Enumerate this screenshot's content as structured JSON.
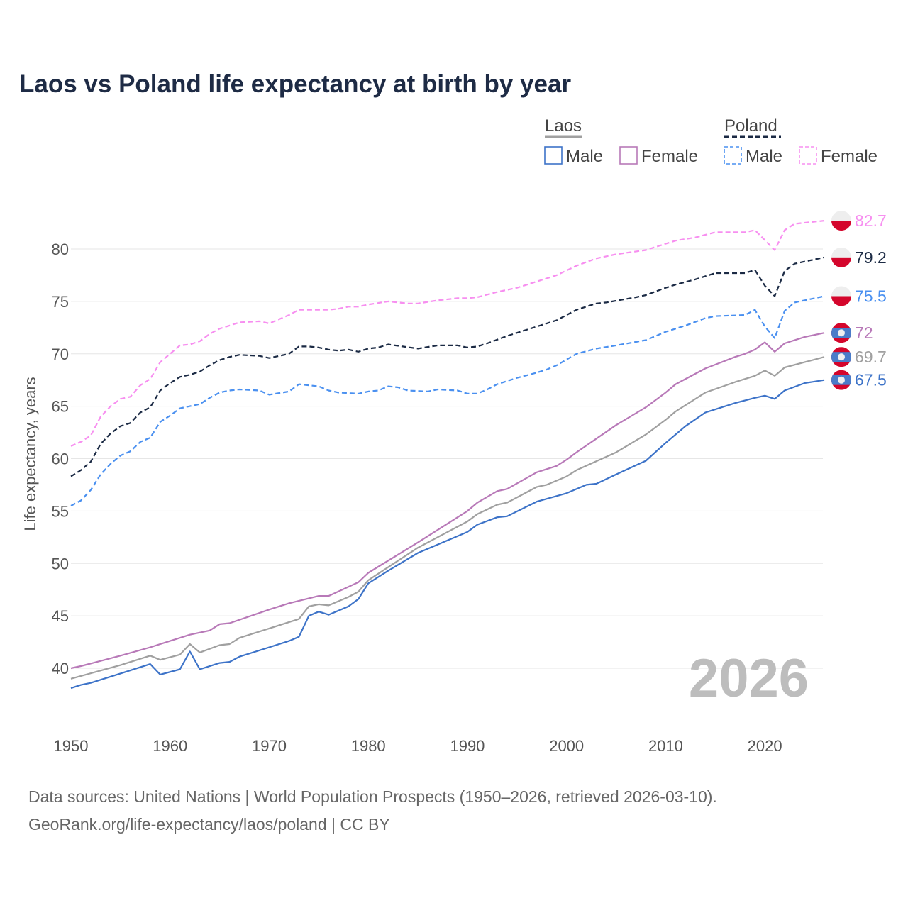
{
  "chart_data": {
    "type": "line",
    "title": "Laos vs Poland life expectancy at birth by year",
    "xlabel": "",
    "ylabel": "Life expectancy, years",
    "xlim": [
      1950,
      2026
    ],
    "ylim": [
      37,
      83
    ],
    "x_ticks": [
      "1950",
      "1960",
      "1970",
      "1980",
      "1990",
      "2000",
      "2010",
      "2020"
    ],
    "y_ticks": [
      "40",
      "45",
      "50",
      "55",
      "60",
      "65",
      "70",
      "75",
      "80"
    ],
    "grid": true,
    "current_year": "2026",
    "legend": {
      "placement": "top-right",
      "groups": [
        {
          "name": "Laos",
          "items": [
            "Male",
            "Female"
          ]
        },
        {
          "name": "Poland",
          "items": [
            "Male",
            "Female"
          ]
        }
      ]
    },
    "series": [
      {
        "name": "Poland Female",
        "country": "Poland",
        "color": "#f78ff0",
        "dashed": true,
        "end_label": "82.7",
        "points": [
          [
            1950,
            61.2
          ],
          [
            1951,
            61.6
          ],
          [
            1952,
            62.2
          ],
          [
            1953,
            64.0
          ],
          [
            1954,
            65.0
          ],
          [
            1955,
            65.7
          ],
          [
            1956,
            65.9
          ],
          [
            1957,
            67.0
          ],
          [
            1958,
            67.6
          ],
          [
            1959,
            69.2
          ],
          [
            1960,
            70.0
          ],
          [
            1961,
            70.8
          ],
          [
            1962,
            70.9
          ],
          [
            1963,
            71.2
          ],
          [
            1964,
            71.9
          ],
          [
            1965,
            72.4
          ],
          [
            1966,
            72.7
          ],
          [
            1967,
            73.0
          ],
          [
            1969,
            73.1
          ],
          [
            1970,
            72.9
          ],
          [
            1971,
            73.3
          ],
          [
            1972,
            73.7
          ],
          [
            1973,
            74.2
          ],
          [
            1976,
            74.2
          ],
          [
            1977,
            74.3
          ],
          [
            1978,
            74.5
          ],
          [
            1979,
            74.5
          ],
          [
            1980,
            74.7
          ],
          [
            1982,
            75.0
          ],
          [
            1984,
            74.8
          ],
          [
            1985,
            74.8
          ],
          [
            1987,
            75.1
          ],
          [
            1989,
            75.3
          ],
          [
            1990,
            75.3
          ],
          [
            1991,
            75.4
          ],
          [
            1993,
            75.9
          ],
          [
            1995,
            76.3
          ],
          [
            1997,
            76.9
          ],
          [
            1999,
            77.5
          ],
          [
            2001,
            78.4
          ],
          [
            2003,
            79.1
          ],
          [
            2005,
            79.5
          ],
          [
            2008,
            79.9
          ],
          [
            2010,
            80.5
          ],
          [
            2011,
            80.8
          ],
          [
            2013,
            81.1
          ],
          [
            2015,
            81.6
          ],
          [
            2018,
            81.6
          ],
          [
            2019,
            81.8
          ],
          [
            2021,
            79.9
          ],
          [
            2022,
            81.8
          ],
          [
            2023,
            82.4
          ],
          [
            2026,
            82.7
          ]
        ]
      },
      {
        "name": "Poland",
        "country": "Poland",
        "color": "#1b2a44",
        "dashed": true,
        "end_label": "79.2",
        "points": [
          [
            1950,
            58.3
          ],
          [
            1951,
            58.9
          ],
          [
            1952,
            59.7
          ],
          [
            1953,
            61.4
          ],
          [
            1954,
            62.4
          ],
          [
            1955,
            63.1
          ],
          [
            1956,
            63.4
          ],
          [
            1957,
            64.4
          ],
          [
            1958,
            64.9
          ],
          [
            1959,
            66.5
          ],
          [
            1960,
            67.2
          ],
          [
            1961,
            67.8
          ],
          [
            1962,
            68.0
          ],
          [
            1963,
            68.3
          ],
          [
            1964,
            68.9
          ],
          [
            1965,
            69.4
          ],
          [
            1966,
            69.7
          ],
          [
            1967,
            69.9
          ],
          [
            1969,
            69.8
          ],
          [
            1970,
            69.6
          ],
          [
            1972,
            70.0
          ],
          [
            1973,
            70.7
          ],
          [
            1974,
            70.7
          ],
          [
            1975,
            70.6
          ],
          [
            1976,
            70.4
          ],
          [
            1977,
            70.3
          ],
          [
            1978,
            70.4
          ],
          [
            1979,
            70.2
          ],
          [
            1980,
            70.5
          ],
          [
            1981,
            70.6
          ],
          [
            1982,
            70.9
          ],
          [
            1985,
            70.5
          ],
          [
            1987,
            70.8
          ],
          [
            1989,
            70.8
          ],
          [
            1990,
            70.6
          ],
          [
            1991,
            70.7
          ],
          [
            1992,
            71.0
          ],
          [
            1994,
            71.7
          ],
          [
            1997,
            72.6
          ],
          [
            1999,
            73.2
          ],
          [
            2000,
            73.7
          ],
          [
            2001,
            74.2
          ],
          [
            2003,
            74.8
          ],
          [
            2004,
            74.9
          ],
          [
            2007,
            75.4
          ],
          [
            2008,
            75.6
          ],
          [
            2010,
            76.3
          ],
          [
            2011,
            76.6
          ],
          [
            2013,
            77.1
          ],
          [
            2015,
            77.7
          ],
          [
            2016,
            77.7
          ],
          [
            2018,
            77.7
          ],
          [
            2019,
            78.0
          ],
          [
            2020,
            76.5
          ],
          [
            2021,
            75.5
          ],
          [
            2022,
            77.9
          ],
          [
            2023,
            78.6
          ],
          [
            2026,
            79.2
          ]
        ]
      },
      {
        "name": "Poland Male",
        "country": "Poland",
        "color": "#4a90f0",
        "dashed": true,
        "end_label": "75.5",
        "points": [
          [
            1950,
            55.5
          ],
          [
            1951,
            56.0
          ],
          [
            1952,
            57.0
          ],
          [
            1953,
            58.5
          ],
          [
            1954,
            59.5
          ],
          [
            1955,
            60.3
          ],
          [
            1956,
            60.7
          ],
          [
            1957,
            61.6
          ],
          [
            1958,
            62.0
          ],
          [
            1959,
            63.5
          ],
          [
            1960,
            64.1
          ],
          [
            1961,
            64.8
          ],
          [
            1962,
            65.0
          ],
          [
            1963,
            65.2
          ],
          [
            1964,
            65.8
          ],
          [
            1965,
            66.3
          ],
          [
            1966,
            66.5
          ],
          [
            1967,
            66.6
          ],
          [
            1969,
            66.5
          ],
          [
            1970,
            66.1
          ],
          [
            1972,
            66.4
          ],
          [
            1973,
            67.1
          ],
          [
            1975,
            66.9
          ],
          [
            1976,
            66.5
          ],
          [
            1977,
            66.3
          ],
          [
            1979,
            66.2
          ],
          [
            1980,
            66.4
          ],
          [
            1981,
            66.5
          ],
          [
            1982,
            66.9
          ],
          [
            1983,
            66.8
          ],
          [
            1984,
            66.5
          ],
          [
            1986,
            66.4
          ],
          [
            1987,
            66.6
          ],
          [
            1989,
            66.5
          ],
          [
            1990,
            66.2
          ],
          [
            1991,
            66.2
          ],
          [
            1992,
            66.6
          ],
          [
            1993,
            67.1
          ],
          [
            1995,
            67.7
          ],
          [
            1997,
            68.2
          ],
          [
            1998,
            68.5
          ],
          [
            1999,
            68.9
          ],
          [
            2001,
            70.0
          ],
          [
            2003,
            70.5
          ],
          [
            2005,
            70.8
          ],
          [
            2008,
            71.3
          ],
          [
            2010,
            72.1
          ],
          [
            2012,
            72.7
          ],
          [
            2014,
            73.4
          ],
          [
            2015,
            73.6
          ],
          [
            2018,
            73.7
          ],
          [
            2019,
            74.2
          ],
          [
            2020,
            72.6
          ],
          [
            2021,
            71.5
          ],
          [
            2022,
            74.1
          ],
          [
            2023,
            74.9
          ],
          [
            2026,
            75.5
          ]
        ]
      },
      {
        "name": "Laos Female",
        "country": "Laos",
        "color": "#b879b8",
        "dashed": false,
        "end_label": "72",
        "points": [
          [
            1950,
            40.0
          ],
          [
            1951,
            40.2
          ],
          [
            1955,
            41.2
          ],
          [
            1958,
            42.0
          ],
          [
            1960,
            42.6
          ],
          [
            1962,
            43.2
          ],
          [
            1964,
            43.6
          ],
          [
            1965,
            44.2
          ],
          [
            1966,
            44.3
          ],
          [
            1970,
            45.6
          ],
          [
            1972,
            46.2
          ],
          [
            1975,
            46.9
          ],
          [
            1976,
            46.9
          ],
          [
            1979,
            48.2
          ],
          [
            1980,
            49.1
          ],
          [
            1985,
            52.0
          ],
          [
            1990,
            55.0
          ],
          [
            1991,
            55.8
          ],
          [
            1993,
            56.9
          ],
          [
            1994,
            57.1
          ],
          [
            1997,
            58.7
          ],
          [
            1999,
            59.3
          ],
          [
            2000,
            59.9
          ],
          [
            2001,
            60.6
          ],
          [
            2005,
            63.2
          ],
          [
            2008,
            64.9
          ],
          [
            2010,
            66.3
          ],
          [
            2011,
            67.1
          ],
          [
            2014,
            68.6
          ],
          [
            2017,
            69.7
          ],
          [
            2018,
            70.0
          ],
          [
            2019,
            70.4
          ],
          [
            2020,
            71.1
          ],
          [
            2021,
            70.2
          ],
          [
            2022,
            71.0
          ],
          [
            2024,
            71.6
          ],
          [
            2026,
            72.0
          ]
        ]
      },
      {
        "name": "Laos",
        "country": "Laos",
        "color": "#a0a0a0",
        "dashed": false,
        "end_label": "69.7",
        "points": [
          [
            1950,
            39.0
          ],
          [
            1955,
            40.3
          ],
          [
            1958,
            41.2
          ],
          [
            1959,
            40.8
          ],
          [
            1961,
            41.3
          ],
          [
            1962,
            42.3
          ],
          [
            1963,
            41.5
          ],
          [
            1965,
            42.2
          ],
          [
            1966,
            42.3
          ],
          [
            1967,
            42.9
          ],
          [
            1970,
            43.8
          ],
          [
            1973,
            44.7
          ],
          [
            1974,
            45.9
          ],
          [
            1975,
            46.1
          ],
          [
            1976,
            46.0
          ],
          [
            1978,
            46.8
          ],
          [
            1979,
            47.3
          ],
          [
            1980,
            48.4
          ],
          [
            1985,
            51.5
          ],
          [
            1990,
            54.0
          ],
          [
            1991,
            54.7
          ],
          [
            1993,
            55.6
          ],
          [
            1994,
            55.8
          ],
          [
            1997,
            57.3
          ],
          [
            1998,
            57.5
          ],
          [
            2000,
            58.3
          ],
          [
            2001,
            58.9
          ],
          [
            2005,
            60.6
          ],
          [
            2008,
            62.3
          ],
          [
            2010,
            63.7
          ],
          [
            2011,
            64.5
          ],
          [
            2014,
            66.3
          ],
          [
            2017,
            67.3
          ],
          [
            2019,
            67.9
          ],
          [
            2020,
            68.4
          ],
          [
            2021,
            67.9
          ],
          [
            2022,
            68.7
          ],
          [
            2024,
            69.2
          ],
          [
            2026,
            69.7
          ]
        ]
      },
      {
        "name": "Laos Male",
        "country": "Laos",
        "color": "#3d73c8",
        "dashed": false,
        "end_label": "67.5",
        "points": [
          [
            1950,
            38.1
          ],
          [
            1951,
            38.4
          ],
          [
            1952,
            38.6
          ],
          [
            1955,
            39.5
          ],
          [
            1958,
            40.4
          ],
          [
            1959,
            39.4
          ],
          [
            1961,
            39.9
          ],
          [
            1962,
            41.6
          ],
          [
            1963,
            39.9
          ],
          [
            1965,
            40.5
          ],
          [
            1966,
            40.6
          ],
          [
            1967,
            41.1
          ],
          [
            1970,
            42.0
          ],
          [
            1972,
            42.6
          ],
          [
            1973,
            43.0
          ],
          [
            1974,
            45.0
          ],
          [
            1975,
            45.4
          ],
          [
            1976,
            45.1
          ],
          [
            1978,
            45.9
          ],
          [
            1979,
            46.6
          ],
          [
            1980,
            48.1
          ],
          [
            1982,
            49.3
          ],
          [
            1985,
            51.0
          ],
          [
            1990,
            53.0
          ],
          [
            1991,
            53.7
          ],
          [
            1993,
            54.4
          ],
          [
            1994,
            54.5
          ],
          [
            1997,
            55.9
          ],
          [
            2000,
            56.7
          ],
          [
            2002,
            57.5
          ],
          [
            2003,
            57.6
          ],
          [
            2005,
            58.5
          ],
          [
            2008,
            59.8
          ],
          [
            2010,
            61.5
          ],
          [
            2012,
            63.1
          ],
          [
            2014,
            64.4
          ],
          [
            2017,
            65.3
          ],
          [
            2019,
            65.8
          ],
          [
            2020,
            66.0
          ],
          [
            2021,
            65.7
          ],
          [
            2022,
            66.5
          ],
          [
            2024,
            67.2
          ],
          [
            2026,
            67.5
          ]
        ]
      }
    ]
  },
  "footer": {
    "line1": "Data sources: United Nations | World Population Prospects (1950–2026, retrieved 2026-03-10).",
    "line2": "GeoRank.org/life-expectancy/laos/poland | CC BY"
  }
}
